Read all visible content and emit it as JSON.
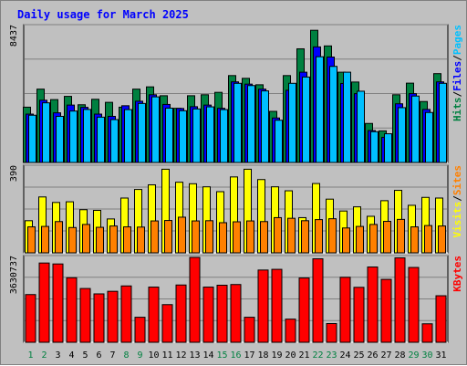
{
  "chart_data": {
    "type": "bar",
    "title": "Daily usage for March 2025",
    "days": [
      1,
      2,
      3,
      4,
      5,
      6,
      7,
      8,
      9,
      10,
      11,
      12,
      13,
      14,
      15,
      16,
      17,
      18,
      19,
      20,
      21,
      22,
      23,
      24,
      25,
      26,
      27,
      28,
      29,
      30,
      31
    ],
    "weekend_days": [
      1,
      2,
      8,
      9,
      15,
      16,
      22,
      23,
      29,
      30
    ],
    "colors": {
      "hits": "#008040",
      "files": "#0000ff",
      "pages": "#00c0ff",
      "visits": "#ffff00",
      "sites": "#ff8000",
      "kbytes": "#ff0000",
      "title": "#0000ff",
      "weekday_label": "#000000",
      "weekend_label": "#008040"
    },
    "panels": [
      {
        "id": "hits-files-pages",
        "max_label": "8437",
        "ymax": 8437,
        "legend": [
          {
            "text": "Hits",
            "color": "#008040"
          },
          {
            "text": "/",
            "color": "#000000"
          },
          {
            "text": "Files",
            "color": "#0000ff"
          },
          {
            "text": "/",
            "color": "#000000"
          },
          {
            "text": "Pages",
            "color": "#00c0ff"
          }
        ],
        "series": [
          {
            "name": "Hits",
            "color": "#008040",
            "values": [
              3430,
              4550,
              3900,
              4100,
              3580,
              3920,
              3730,
              3430,
              4550,
              4690,
              4140,
              3360,
              4140,
              4200,
              4350,
              5390,
              5220,
              4820,
              3170,
              5390,
              7050,
              8200,
              7230,
              5600,
              4990,
              2420,
              1960,
              4200,
              4920,
              3780,
              5510
            ]
          },
          {
            "name": "Files",
            "color": "#0000ff",
            "values": [
              3000,
              3860,
              3080,
              3560,
              3420,
              3000,
              2860,
              3520,
              3800,
              4200,
              3600,
              3350,
              3460,
              3560,
              3360,
              5000,
              4860,
              4550,
              2760,
              4480,
              5600,
              7170,
              6540,
              4900,
              4270,
              1980,
              1560,
              3640,
              4270,
              3290,
              5000
            ]
          },
          {
            "name": "Pages",
            "color": "#00c0ff",
            "values": [
              2930,
              3700,
              2860,
              3190,
              3290,
              2810,
              2660,
              3280,
              3660,
              4070,
              3370,
              3210,
              3320,
              3450,
              3280,
              4910,
              4770,
              4440,
              2620,
              4910,
              5300,
              6560,
              5960,
              5600,
              4420,
              1910,
              1780,
              3400,
              4120,
              3100,
              4910
            ]
          }
        ]
      },
      {
        "id": "visits-sites",
        "max_label": "390",
        "ymax": 390,
        "legend": [
          {
            "text": "Visits",
            "color": "#ffff00"
          },
          {
            "text": "/",
            "color": "#000000"
          },
          {
            "text": "Sites",
            "color": "#ff8000"
          }
        ],
        "series": [
          {
            "name": "Visits",
            "color": "#ffff00",
            "values": [
              146,
              254,
              229,
              232,
              196,
              193,
              154,
              249,
              288,
              309,
              380,
              321,
              314,
              300,
              278,
              345,
              380,
              333,
              300,
              282,
              160,
              315,
              244,
              190,
              209,
              166,
              237,
              284,
              216,
              252,
              249
            ]
          },
          {
            "name": "Sites",
            "color": "#ff8000",
            "values": [
              118,
              120,
              142,
              115,
              129,
              116,
              122,
              118,
              117,
              145,
              147,
              162,
              145,
              146,
              137,
              141,
              145,
              142,
              160,
              157,
              146,
              151,
              155,
              113,
              120,
              129,
              143,
              152,
              118,
              124,
              122
            ]
          }
        ]
      },
      {
        "id": "kbytes",
        "max_label": "3630737",
        "ymax": 3630737,
        "legend": [
          {
            "text": "KBytes",
            "color": "#ff0000"
          }
        ],
        "series": [
          {
            "name": "KBytes",
            "color": "#ff0000",
            "values": [
              2040000,
              3390000,
              3350000,
              2760000,
              2300000,
              2070000,
              2180000,
              2410000,
              1070000,
              2360000,
              1610000,
              2450000,
              3630737,
              2360000,
              2440000,
              2470000,
              1070000,
              3090000,
              3120000,
              990000,
              2750000,
              3570000,
              800000,
              2780000,
              2350000,
              3220000,
              2690000,
              3610000,
              3200000,
              790000,
              1990000
            ]
          }
        ]
      }
    ]
  }
}
